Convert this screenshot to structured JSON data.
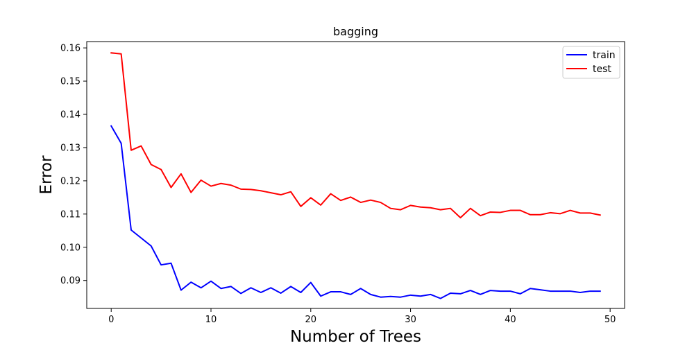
{
  "chart_data": {
    "type": "line",
    "title": "bagging",
    "xlabel": "Number of Trees",
    "ylabel": "Error",
    "xlim": [
      -2.45,
      51.45
    ],
    "ylim": [
      0.0816,
      0.1619
    ],
    "xticks": [
      0,
      10,
      20,
      30,
      40,
      50
    ],
    "yticks": [
      0.09,
      0.1,
      0.11,
      0.12,
      0.13,
      0.14,
      0.15,
      0.16
    ],
    "xtick_labels": [
      "0",
      "10",
      "20",
      "30",
      "40",
      "50"
    ],
    "ytick_labels": [
      "0.09",
      "0.10",
      "0.11",
      "0.12",
      "0.13",
      "0.14",
      "0.15",
      "0.16"
    ],
    "grid": false,
    "legend_position": "top-right",
    "x": [
      0,
      1,
      2,
      3,
      4,
      5,
      6,
      7,
      8,
      9,
      10,
      11,
      12,
      13,
      14,
      15,
      16,
      17,
      18,
      19,
      20,
      21,
      22,
      23,
      24,
      25,
      26,
      27,
      28,
      29,
      30,
      31,
      32,
      33,
      34,
      35,
      36,
      37,
      38,
      39,
      40,
      41,
      42,
      43,
      44,
      45,
      46,
      47,
      48,
      49
    ],
    "series": [
      {
        "name": "train",
        "color": "#0000ff",
        "values": [
          0.1365,
          0.1313,
          0.1052,
          0.1028,
          0.1004,
          0.0947,
          0.0952,
          0.0871,
          0.0895,
          0.0878,
          0.0898,
          0.0876,
          0.0882,
          0.0861,
          0.0878,
          0.0864,
          0.0878,
          0.0862,
          0.0882,
          0.0864,
          0.0894,
          0.0853,
          0.0866,
          0.0866,
          0.0858,
          0.0876,
          0.0858,
          0.085,
          0.0852,
          0.085,
          0.0856,
          0.0853,
          0.0858,
          0.0846,
          0.0862,
          0.086,
          0.087,
          0.0858,
          0.087,
          0.0868,
          0.0868,
          0.086,
          0.0876,
          0.0872,
          0.0868,
          0.0868,
          0.0868,
          0.0864,
          0.0868,
          0.0868
        ]
      },
      {
        "name": "test",
        "color": "#ff0000",
        "values": [
          0.1585,
          0.1582,
          0.1292,
          0.1305,
          0.1249,
          0.1234,
          0.118,
          0.1221,
          0.1165,
          0.1202,
          0.1184,
          0.1192,
          0.1187,
          0.1175,
          0.1174,
          0.117,
          0.1164,
          0.1158,
          0.1167,
          0.1123,
          0.1149,
          0.1127,
          0.1161,
          0.1141,
          0.1151,
          0.1135,
          0.1142,
          0.1135,
          0.1117,
          0.1113,
          0.1126,
          0.1121,
          0.1119,
          0.1113,
          0.1117,
          0.1089,
          0.1117,
          0.1095,
          0.1106,
          0.1105,
          0.1111,
          0.1111,
          0.1098,
          0.1098,
          0.1104,
          0.1101,
          0.1111,
          0.1103,
          0.1103,
          0.1097
        ]
      }
    ]
  }
}
